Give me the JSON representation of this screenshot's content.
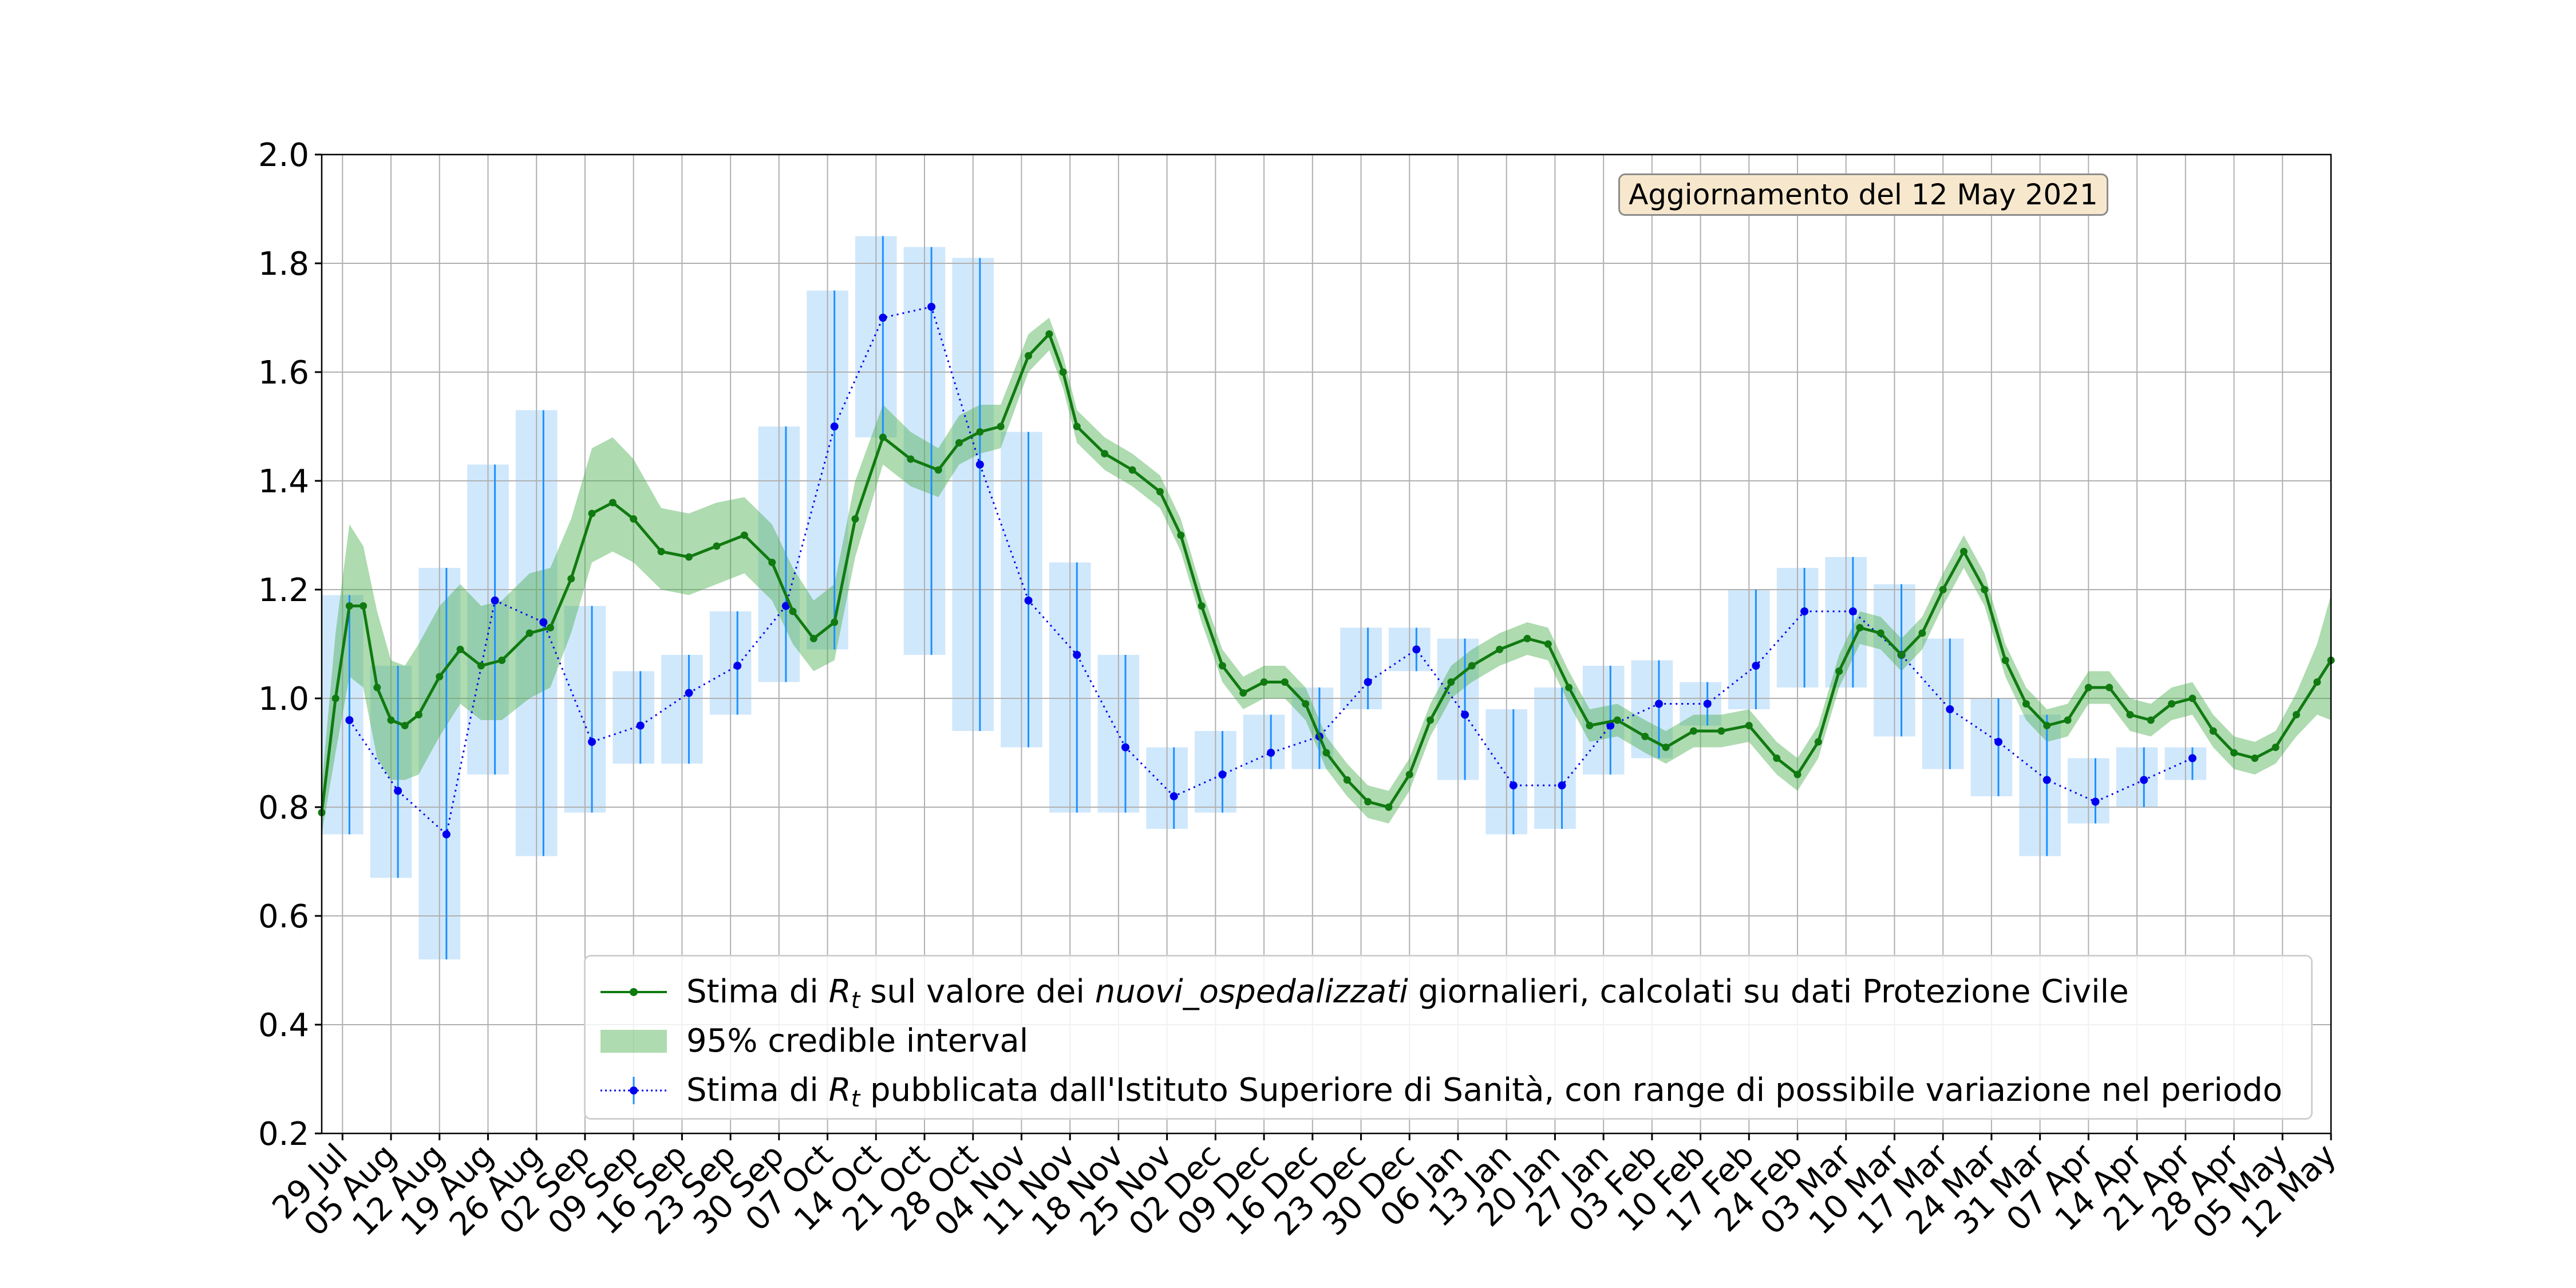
{
  "chart_data": {
    "type": "line",
    "title": "",
    "xlabel": "",
    "ylabel": "",
    "ylim": [
      0.2,
      2.0
    ],
    "y_ticks": [
      "0.2",
      "0.4",
      "0.6",
      "0.8",
      "1.0",
      "1.2",
      "1.4",
      "1.6",
      "1.8",
      "2.0"
    ],
    "x_start_date": "2020-07-26",
    "x_end_date": "2021-05-12",
    "x_tick_labels": [
      "29 Jul",
      "05 Aug",
      "12 Aug",
      "19 Aug",
      "26 Aug",
      "02 Sep",
      "09 Sep",
      "16 Sep",
      "23 Sep",
      "30 Sep",
      "07 Oct",
      "14 Oct",
      "21 Oct",
      "28 Oct",
      "04 Nov",
      "11 Nov",
      "18 Nov",
      "25 Nov",
      "02 Dec",
      "09 Dec",
      "16 Dec",
      "23 Dec",
      "30 Dec",
      "06 Jan",
      "13 Jan",
      "20 Jan",
      "27 Jan",
      "03 Feb",
      "10 Feb",
      "17 Feb",
      "24 Feb",
      "03 Mar",
      "10 Mar",
      "17 Mar",
      "24 Mar",
      "31 Mar",
      "07 Apr",
      "14 Apr",
      "21 Apr",
      "28 Apr",
      "05 May",
      "12 May"
    ],
    "grid": true,
    "legend_position": "lower-right",
    "annotation": "Aggiornamento del 12 May 2021",
    "colors": {
      "estimate_line": "#107a10",
      "credible_fill": "#4caf50",
      "iss_line": "#0000ee",
      "iss_errorbar": "#1e90ff",
      "iss_box": "#90c8f8"
    },
    "series": [
      {
        "name_parts": [
          "Stima di ",
          "R",
          "t",
          " sul valore dei ",
          "nuovi_ospedalizzati",
          " giornalieri, calcolati su dati Protezione Civile"
        ],
        "kind": "line-with-markers",
        "points": [
          [
            "2020-07-26",
            0.79,
            0.75,
            0.84
          ],
          [
            "2020-07-28",
            1.0,
            0.9,
            1.12
          ],
          [
            "2020-07-30",
            1.17,
            1.04,
            1.32
          ],
          [
            "2020-08-01",
            1.17,
            1.02,
            1.28
          ],
          [
            "2020-08-03",
            1.02,
            0.89,
            1.16
          ],
          [
            "2020-08-05",
            0.96,
            0.85,
            1.07
          ],
          [
            "2020-08-07",
            0.95,
            0.85,
            1.06
          ],
          [
            "2020-08-09",
            0.97,
            0.86,
            1.1
          ],
          [
            "2020-08-12",
            1.04,
            0.93,
            1.17
          ],
          [
            "2020-08-15",
            1.09,
            0.99,
            1.21
          ],
          [
            "2020-08-18",
            1.06,
            0.96,
            1.17
          ],
          [
            "2020-08-21",
            1.07,
            0.96,
            1.18
          ],
          [
            "2020-08-25",
            1.12,
            1.0,
            1.23
          ],
          [
            "2020-08-28",
            1.13,
            1.02,
            1.24
          ],
          [
            "2020-08-31",
            1.22,
            1.12,
            1.33
          ],
          [
            "2020-09-03",
            1.34,
            1.25,
            1.46
          ],
          [
            "2020-09-06",
            1.36,
            1.27,
            1.48
          ],
          [
            "2020-09-09",
            1.33,
            1.25,
            1.44
          ],
          [
            "2020-09-13",
            1.27,
            1.2,
            1.35
          ],
          [
            "2020-09-17",
            1.26,
            1.19,
            1.34
          ],
          [
            "2020-09-21",
            1.28,
            1.21,
            1.36
          ],
          [
            "2020-09-25",
            1.3,
            1.23,
            1.37
          ],
          [
            "2020-09-29",
            1.25,
            1.18,
            1.32
          ],
          [
            "2020-10-02",
            1.16,
            1.1,
            1.24
          ],
          [
            "2020-10-05",
            1.11,
            1.05,
            1.18
          ],
          [
            "2020-10-08",
            1.14,
            1.07,
            1.21
          ],
          [
            "2020-10-11",
            1.33,
            1.26,
            1.4
          ],
          [
            "2020-10-15",
            1.48,
            1.43,
            1.54
          ],
          [
            "2020-10-19",
            1.44,
            1.39,
            1.49
          ],
          [
            "2020-10-23",
            1.42,
            1.37,
            1.46
          ],
          [
            "2020-10-26",
            1.47,
            1.43,
            1.52
          ],
          [
            "2020-10-29",
            1.49,
            1.45,
            1.54
          ],
          [
            "2020-11-01",
            1.5,
            1.46,
            1.54
          ],
          [
            "2020-11-05",
            1.63,
            1.6,
            1.67
          ],
          [
            "2020-11-08",
            1.67,
            1.64,
            1.7
          ],
          [
            "2020-11-10",
            1.6,
            1.57,
            1.63
          ],
          [
            "2020-11-12",
            1.5,
            1.47,
            1.53
          ],
          [
            "2020-11-16",
            1.45,
            1.42,
            1.48
          ],
          [
            "2020-11-20",
            1.42,
            1.39,
            1.45
          ],
          [
            "2020-11-24",
            1.38,
            1.35,
            1.41
          ],
          [
            "2020-11-27",
            1.3,
            1.27,
            1.33
          ],
          [
            "2020-11-30",
            1.17,
            1.14,
            1.2
          ],
          [
            "2020-12-03",
            1.06,
            1.03,
            1.09
          ],
          [
            "2020-12-06",
            1.01,
            0.98,
            1.04
          ],
          [
            "2020-12-09",
            1.03,
            1.0,
            1.06
          ],
          [
            "2020-12-12",
            1.03,
            1.0,
            1.06
          ],
          [
            "2020-12-15",
            0.99,
            0.96,
            1.02
          ],
          [
            "2020-12-18",
            0.9,
            0.87,
            0.93
          ],
          [
            "2020-12-21",
            0.85,
            0.82,
            0.88
          ],
          [
            "2020-12-24",
            0.81,
            0.78,
            0.84
          ],
          [
            "2020-12-27",
            0.8,
            0.77,
            0.83
          ],
          [
            "2020-12-30",
            0.86,
            0.83,
            0.89
          ],
          [
            "2021-01-02",
            0.96,
            0.93,
            0.99
          ],
          [
            "2021-01-05",
            1.03,
            1.0,
            1.06
          ],
          [
            "2021-01-08",
            1.06,
            1.03,
            1.09
          ],
          [
            "2021-01-12",
            1.09,
            1.06,
            1.12
          ],
          [
            "2021-01-16",
            1.11,
            1.08,
            1.14
          ],
          [
            "2021-01-19",
            1.1,
            1.07,
            1.13
          ],
          [
            "2021-01-22",
            1.02,
            0.99,
            1.05
          ],
          [
            "2021-01-25",
            0.95,
            0.92,
            0.98
          ],
          [
            "2021-01-29",
            0.96,
            0.93,
            0.99
          ],
          [
            "2021-02-02",
            0.93,
            0.9,
            0.96
          ],
          [
            "2021-02-05",
            0.91,
            0.88,
            0.94
          ],
          [
            "2021-02-09",
            0.94,
            0.91,
            0.97
          ],
          [
            "2021-02-13",
            0.94,
            0.91,
            0.97
          ],
          [
            "2021-02-17",
            0.95,
            0.92,
            0.98
          ],
          [
            "2021-02-21",
            0.89,
            0.86,
            0.92
          ],
          [
            "2021-02-24",
            0.86,
            0.83,
            0.89
          ],
          [
            "2021-02-27",
            0.92,
            0.89,
            0.95
          ],
          [
            "2021-03-02",
            1.05,
            1.02,
            1.08
          ],
          [
            "2021-03-05",
            1.13,
            1.1,
            1.16
          ],
          [
            "2021-03-08",
            1.12,
            1.09,
            1.15
          ],
          [
            "2021-03-11",
            1.08,
            1.05,
            1.11
          ],
          [
            "2021-03-14",
            1.12,
            1.09,
            1.15
          ],
          [
            "2021-03-17",
            1.2,
            1.17,
            1.23
          ],
          [
            "2021-03-20",
            1.27,
            1.24,
            1.3
          ],
          [
            "2021-03-23",
            1.2,
            1.17,
            1.23
          ],
          [
            "2021-03-26",
            1.07,
            1.04,
            1.1
          ],
          [
            "2021-03-29",
            0.99,
            0.96,
            1.02
          ],
          [
            "2021-04-01",
            0.95,
            0.92,
            0.98
          ],
          [
            "2021-04-04",
            0.96,
            0.93,
            0.99
          ],
          [
            "2021-04-07",
            1.02,
            0.99,
            1.05
          ],
          [
            "2021-04-10",
            1.02,
            0.99,
            1.05
          ],
          [
            "2021-04-13",
            0.97,
            0.94,
            1.0
          ],
          [
            "2021-04-16",
            0.96,
            0.93,
            0.99
          ],
          [
            "2021-04-19",
            0.99,
            0.96,
            1.02
          ],
          [
            "2021-04-22",
            1.0,
            0.97,
            1.03
          ],
          [
            "2021-04-25",
            0.94,
            0.91,
            0.97
          ],
          [
            "2021-04-28",
            0.9,
            0.87,
            0.93
          ],
          [
            "2021-05-01",
            0.89,
            0.86,
            0.92
          ],
          [
            "2021-05-04",
            0.91,
            0.88,
            0.94
          ],
          [
            "2021-05-07",
            0.97,
            0.93,
            1.01
          ],
          [
            "2021-05-10",
            1.03,
            0.97,
            1.1
          ],
          [
            "2021-05-12",
            1.07,
            0.96,
            1.19
          ]
        ]
      },
      {
        "name": "95% credible interval",
        "kind": "band"
      },
      {
        "name_parts": [
          "Stima di ",
          "R",
          "t",
          " pubblicata dall'Istituto Superiore di Sanità, con range di possibile variazione nel periodo"
        ],
        "kind": "errorbar-with-boxes",
        "points": [
          [
            "2020-07-26",
            "2020-08-01",
            "2020-07-30",
            0.96,
            0.75,
            1.19
          ],
          [
            "2020-08-02",
            "2020-08-08",
            "2020-08-06",
            0.83,
            0.67,
            1.06
          ],
          [
            "2020-08-09",
            "2020-08-15",
            "2020-08-13",
            0.75,
            0.52,
            1.24
          ],
          [
            "2020-08-16",
            "2020-08-22",
            "2020-08-20",
            1.18,
            0.86,
            1.43
          ],
          [
            "2020-08-23",
            "2020-08-29",
            "2020-08-27",
            1.14,
            0.71,
            1.53
          ],
          [
            "2020-08-30",
            "2020-09-05",
            "2020-09-03",
            0.92,
            0.79,
            1.17
          ],
          [
            "2020-09-06",
            "2020-09-12",
            "2020-09-10",
            0.95,
            0.88,
            1.05
          ],
          [
            "2020-09-13",
            "2020-09-19",
            "2020-09-17",
            1.01,
            0.88,
            1.08
          ],
          [
            "2020-09-20",
            "2020-09-26",
            "2020-09-24",
            1.06,
            0.97,
            1.16
          ],
          [
            "2020-09-27",
            "2020-10-03",
            "2020-10-01",
            1.17,
            1.03,
            1.5
          ],
          [
            "2020-10-04",
            "2020-10-10",
            "2020-10-08",
            1.5,
            1.09,
            1.75
          ],
          [
            "2020-10-11",
            "2020-10-17",
            "2020-10-15",
            1.7,
            1.48,
            1.85
          ],
          [
            "2020-10-18",
            "2020-10-24",
            "2020-10-22",
            1.72,
            1.08,
            1.83
          ],
          [
            "2020-10-25",
            "2020-10-31",
            "2020-10-29",
            1.43,
            0.94,
            1.81
          ],
          [
            "2020-11-01",
            "2020-11-07",
            "2020-11-05",
            1.18,
            0.91,
            1.49
          ],
          [
            "2020-11-08",
            "2020-11-14",
            "2020-11-12",
            1.08,
            0.79,
            1.25
          ],
          [
            "2020-11-15",
            "2020-11-21",
            "2020-11-19",
            0.91,
            0.79,
            1.08
          ],
          [
            "2020-11-22",
            "2020-11-28",
            "2020-11-26",
            0.82,
            0.76,
            0.91
          ],
          [
            "2020-11-29",
            "2020-12-05",
            "2020-12-03",
            0.86,
            0.79,
            0.94
          ],
          [
            "2020-12-06",
            "2020-12-12",
            "2020-12-10",
            0.9,
            0.87,
            0.97
          ],
          [
            "2020-12-13",
            "2020-12-19",
            "2020-12-17",
            0.93,
            0.87,
            1.02
          ],
          [
            "2020-12-20",
            "2020-12-26",
            "2020-12-24",
            1.03,
            0.98,
            1.13
          ],
          [
            "2020-12-27",
            "2021-01-02",
            "2020-12-31",
            1.09,
            1.05,
            1.13
          ],
          [
            "2021-01-03",
            "2021-01-09",
            "2021-01-07",
            0.97,
            0.85,
            1.11
          ],
          [
            "2021-01-10",
            "2021-01-16",
            "2021-01-14",
            0.84,
            0.75,
            0.98
          ],
          [
            "2021-01-17",
            "2021-01-23",
            "2021-01-21",
            0.84,
            0.76,
            1.02
          ],
          [
            "2021-01-24",
            "2021-01-30",
            "2021-01-28",
            0.95,
            0.86,
            1.06
          ],
          [
            "2021-01-31",
            "2021-02-06",
            "2021-02-04",
            0.99,
            0.89,
            1.07
          ],
          [
            "2021-02-07",
            "2021-02-13",
            "2021-02-11",
            0.99,
            0.95,
            1.03
          ],
          [
            "2021-02-14",
            "2021-02-20",
            "2021-02-18",
            1.06,
            0.98,
            1.2
          ],
          [
            "2021-02-21",
            "2021-02-27",
            "2021-02-25",
            1.16,
            1.02,
            1.24
          ],
          [
            "2021-02-28",
            "2021-03-06",
            "2021-03-04",
            1.16,
            1.02,
            1.26
          ],
          [
            "2021-03-07",
            "2021-03-13",
            "2021-03-11",
            1.08,
            0.93,
            1.21
          ],
          [
            "2021-03-14",
            "2021-03-20",
            "2021-03-18",
            0.98,
            0.87,
            1.11
          ],
          [
            "2021-03-21",
            "2021-03-27",
            "2021-03-25",
            0.92,
            0.82,
            1.0
          ],
          [
            "2021-03-28",
            "2021-04-03",
            "2021-04-01",
            0.85,
            0.71,
            0.97
          ],
          [
            "2021-04-04",
            "2021-04-10",
            "2021-04-08",
            0.81,
            0.77,
            0.89
          ],
          [
            "2021-04-11",
            "2021-04-17",
            "2021-04-15",
            0.85,
            0.8,
            0.91
          ],
          [
            "2021-04-18",
            "2021-04-24",
            "2021-04-22",
            0.89,
            0.85,
            0.91
          ]
        ]
      }
    ]
  }
}
